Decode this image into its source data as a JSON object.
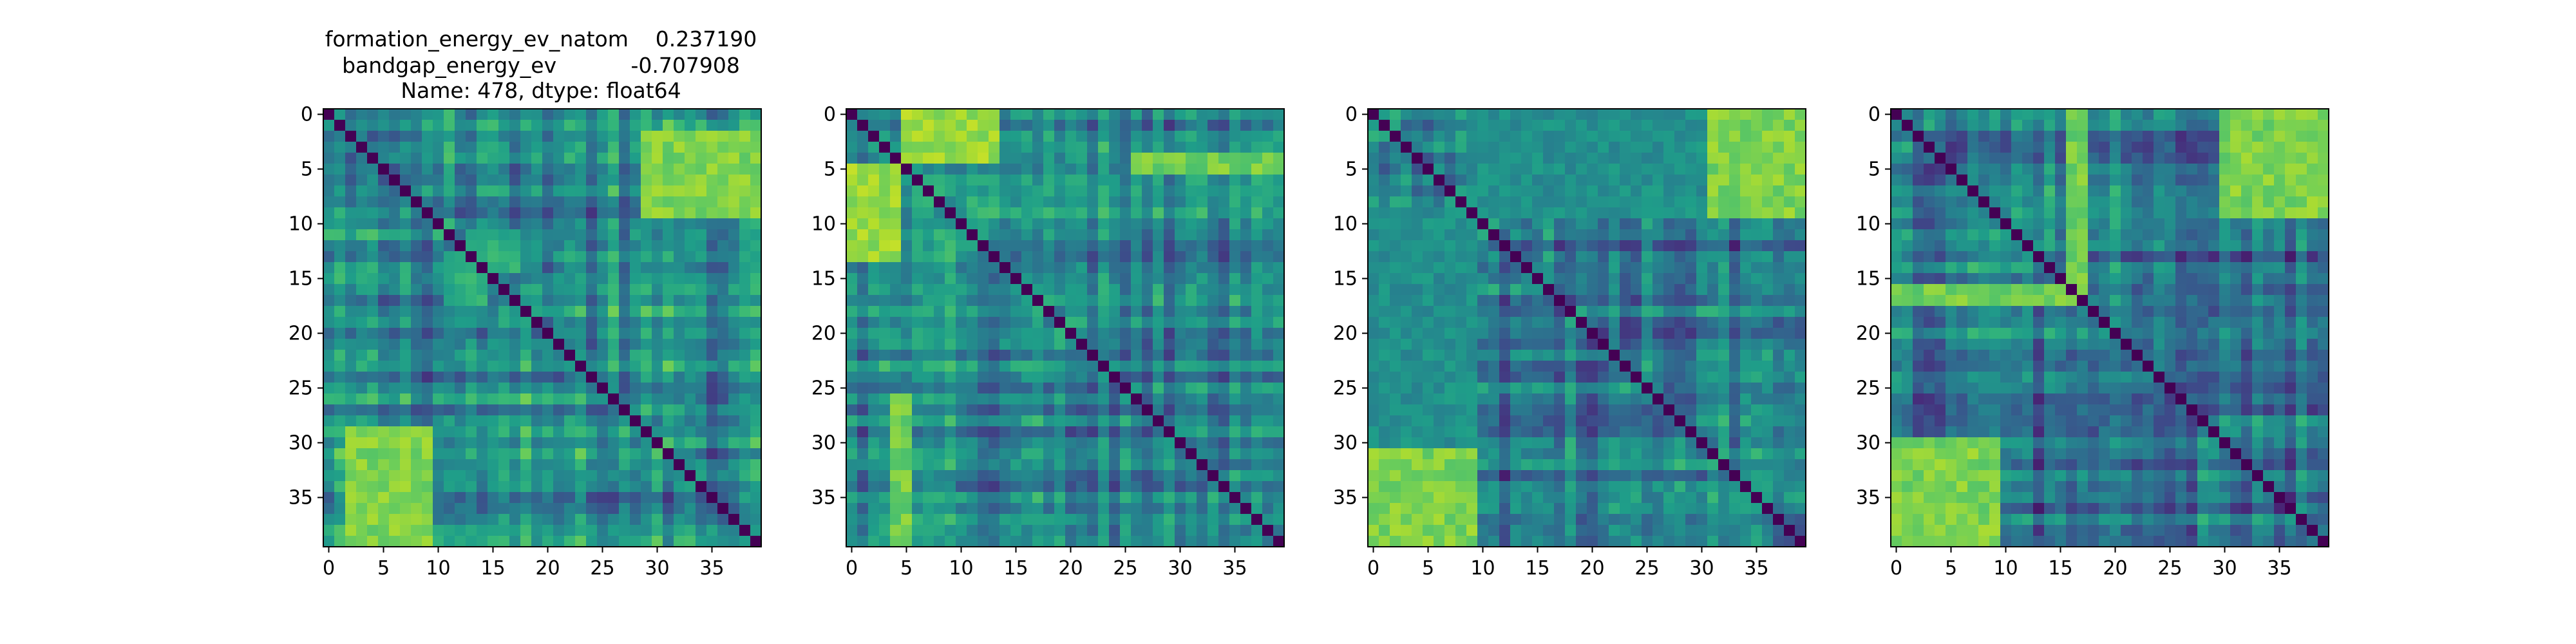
{
  "figure": {
    "title_lines": [
      "formation_energy_ev_natom    0.237190",
      "bandgap_energy_ev           -0.707908",
      "Name: 478, dtype: float64"
    ],
    "colormap": "viridis",
    "colormap_stops": [
      "#440154",
      "#482878",
      "#3e4989",
      "#31688e",
      "#26828e",
      "#1f9e89",
      "#35b779",
      "#6ece58",
      "#b5de2b",
      "#fde725"
    ]
  },
  "chart_data": [
    {
      "type": "heatmap",
      "panel": "1",
      "title": "",
      "rows": 40,
      "cols": 40,
      "x_ticks": [
        0,
        5,
        10,
        15,
        20,
        25,
        30,
        35
      ],
      "y_ticks": [
        0,
        5,
        10,
        15,
        20,
        25,
        30,
        35
      ],
      "xlim": [
        -0.5,
        39.5
      ],
      "ylim": [
        39.5,
        -0.5
      ],
      "diagonal_value": 0.0,
      "blocks": [
        {
          "rows": [
            3,
            8
          ],
          "cols": [
            29,
            39
          ],
          "value": 0.82
        },
        {
          "rows": [
            29,
            39
          ],
          "cols": [
            2,
            9
          ],
          "value": 0.8
        },
        {
          "rows": [
            13,
            17
          ],
          "cols": [
            11,
            14
          ],
          "value": 0.62
        }
      ],
      "base_value": 0.45
    },
    {
      "type": "heatmap",
      "panel": "2",
      "title": "",
      "rows": 40,
      "cols": 40,
      "x_ticks": [
        0,
        5,
        10,
        15,
        20,
        25,
        30,
        35
      ],
      "y_ticks": [
        0,
        5,
        10,
        15,
        20,
        25,
        30,
        35
      ],
      "xlim": [
        -0.5,
        39.5
      ],
      "ylim": [
        39.5,
        -0.5
      ],
      "diagonal_value": 0.0,
      "blocks": [
        {
          "rows": [
            0,
            4
          ],
          "cols": [
            5,
            13
          ],
          "value": 0.85
        },
        {
          "rows": [
            5,
            13
          ],
          "cols": [
            0,
            4
          ],
          "value": 0.85
        },
        {
          "rows": [
            4,
            5
          ],
          "cols": [
            26,
            39
          ],
          "value": 0.78
        }
      ],
      "base_value": 0.42
    },
    {
      "type": "heatmap",
      "panel": "3",
      "title": "",
      "rows": 40,
      "cols": 40,
      "x_ticks": [
        0,
        5,
        10,
        15,
        20,
        25,
        30,
        35
      ],
      "y_ticks": [
        0,
        5,
        10,
        15,
        20,
        25,
        30,
        35
      ],
      "xlim": [
        -0.5,
        39.5
      ],
      "ylim": [
        39.5,
        -0.5
      ],
      "diagonal_value": 0.0,
      "blocks": [
        {
          "rows": [
            3,
            8
          ],
          "cols": [
            30,
            39
          ],
          "value": 0.82
        },
        {
          "rows": [
            30,
            39
          ],
          "cols": [
            0,
            9
          ],
          "value": 0.8
        },
        {
          "rows": [
            0,
            9
          ],
          "cols": [
            9,
            30
          ],
          "value": 0.5
        }
      ],
      "base_value": 0.42
    },
    {
      "type": "heatmap",
      "panel": "4",
      "title": "",
      "rows": 40,
      "cols": 40,
      "x_ticks": [
        0,
        5,
        10,
        15,
        20,
        25,
        30,
        35
      ],
      "y_ticks": [
        0,
        5,
        10,
        15,
        20,
        25,
        30,
        35
      ],
      "xlim": [
        -0.5,
        39.5
      ],
      "ylim": [
        39.5,
        -0.5
      ],
      "diagonal_value": 0.0,
      "blocks": [
        {
          "rows": [
            0,
            9
          ],
          "cols": [
            30,
            39
          ],
          "value": 0.82
        },
        {
          "rows": [
            30,
            39
          ],
          "cols": [
            0,
            9
          ],
          "value": 0.8
        },
        {
          "rows": [
            16,
            17
          ],
          "cols": [
            0,
            16
          ],
          "value": 0.78
        }
      ],
      "base_value": 0.4
    }
  ]
}
